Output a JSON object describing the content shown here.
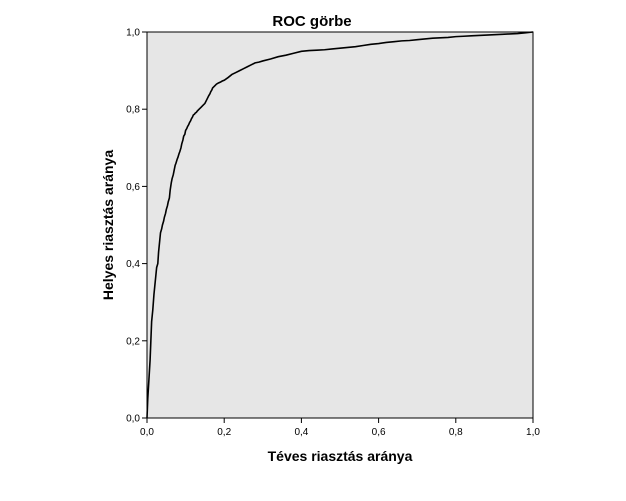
{
  "chart_data": {
    "type": "line",
    "title": "ROC görbe",
    "xlabel": "Téves riasztás aránya",
    "ylabel": "Helyes riasztás aránya",
    "xlim": [
      0.0,
      1.0
    ],
    "ylim": [
      0.0,
      1.0
    ],
    "x_ticks": [
      "0,0",
      "0,2",
      "0,4",
      "0,6",
      "0,8",
      "1,0"
    ],
    "y_ticks": [
      "0,0",
      "0,2",
      "0,4",
      "0,6",
      "0,8",
      "1,0"
    ],
    "grid": false,
    "colors": {
      "plot_background": "#e6e6e6",
      "line": "#000000"
    },
    "series": [
      {
        "x": [
          0.0,
          0.002,
          0.005,
          0.008,
          0.01,
          0.012,
          0.015,
          0.018,
          0.02,
          0.023,
          0.025,
          0.028,
          0.03,
          0.033,
          0.035,
          0.038,
          0.04,
          0.043,
          0.045,
          0.048,
          0.05,
          0.053,
          0.055,
          0.058,
          0.06,
          0.063,
          0.065,
          0.068,
          0.07,
          0.073,
          0.075,
          0.078,
          0.08,
          0.083,
          0.085,
          0.088,
          0.09,
          0.093,
          0.095,
          0.098,
          0.1,
          0.103,
          0.105,
          0.108,
          0.11,
          0.113,
          0.115,
          0.118,
          0.12,
          0.123,
          0.125,
          0.128,
          0.13,
          0.135,
          0.14,
          0.145,
          0.15,
          0.155,
          0.16,
          0.163,
          0.165,
          0.168,
          0.17,
          0.175,
          0.18,
          0.185,
          0.19,
          0.195,
          0.2,
          0.21,
          0.22,
          0.23,
          0.24,
          0.25,
          0.26,
          0.27,
          0.28,
          0.29,
          0.3,
          0.32,
          0.34,
          0.36,
          0.38,
          0.4,
          0.42,
          0.44,
          0.46,
          0.48,
          0.5,
          0.52,
          0.54,
          0.56,
          0.58,
          0.6,
          0.62,
          0.64,
          0.66,
          0.68,
          0.7,
          0.72,
          0.74,
          0.76,
          0.78,
          0.8,
          0.82,
          0.84,
          0.86,
          0.88,
          0.9,
          0.92,
          0.94,
          0.96,
          0.98,
          1.0
        ],
        "y": [
          0.0,
          0.05,
          0.1,
          0.15,
          0.2,
          0.25,
          0.28,
          0.32,
          0.34,
          0.37,
          0.39,
          0.4,
          0.43,
          0.46,
          0.48,
          0.49,
          0.5,
          0.51,
          0.52,
          0.53,
          0.54,
          0.55,
          0.56,
          0.57,
          0.59,
          0.61,
          0.62,
          0.63,
          0.64,
          0.655,
          0.66,
          0.67,
          0.675,
          0.685,
          0.69,
          0.7,
          0.71,
          0.72,
          0.73,
          0.735,
          0.745,
          0.75,
          0.755,
          0.76,
          0.765,
          0.77,
          0.775,
          0.78,
          0.785,
          0.787,
          0.79,
          0.792,
          0.795,
          0.8,
          0.805,
          0.81,
          0.815,
          0.825,
          0.835,
          0.84,
          0.845,
          0.85,
          0.855,
          0.86,
          0.865,
          0.868,
          0.87,
          0.873,
          0.875,
          0.882,
          0.89,
          0.895,
          0.9,
          0.905,
          0.91,
          0.915,
          0.92,
          0.922,
          0.925,
          0.93,
          0.936,
          0.94,
          0.945,
          0.95,
          0.952,
          0.953,
          0.954,
          0.956,
          0.958,
          0.96,
          0.962,
          0.965,
          0.968,
          0.97,
          0.973,
          0.975,
          0.977,
          0.978,
          0.98,
          0.982,
          0.984,
          0.985,
          0.986,
          0.988,
          0.989,
          0.99,
          0.991,
          0.992,
          0.993,
          0.994,
          0.995,
          0.996,
          0.998,
          1.0
        ]
      }
    ]
  }
}
